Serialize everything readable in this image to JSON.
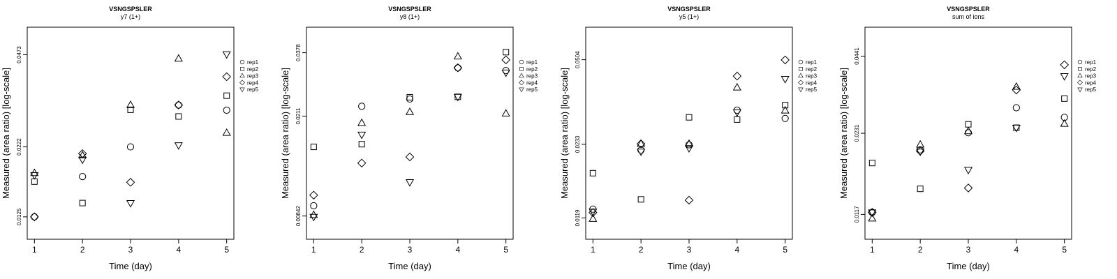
{
  "chart_data": [
    {
      "type": "scatter",
      "title": "VSNGSPSLER",
      "subtitle": "y7 (1+)",
      "xlabel": "Time (day)",
      "ylabel": "Measured (area ratio) [log-scale]",
      "x_ticks": [
        "1",
        "2",
        "3",
        "4",
        "5"
      ],
      "y_ticks": [
        {
          "value": 0.0125,
          "label": "0.0125"
        },
        {
          "value": 0.0222,
          "label": "0.0222"
        },
        {
          "value": 0.0473,
          "label": "0.0473"
        }
      ],
      "ylim": [
        0.0104,
        0.0593
      ],
      "log_y": true,
      "legend_position": "right",
      "series": [
        {
          "name": "rep1",
          "marker": "circle",
          "x": [
            1,
            2,
            3,
            4,
            5
          ],
          "y": [
            0.0125,
            0.0174,
            0.0222,
            0.0313,
            0.03
          ]
        },
        {
          "name": "rep2",
          "marker": "square",
          "x": [
            1,
            2,
            3,
            4,
            5
          ],
          "y": [
            0.0167,
            0.014,
            0.0301,
            0.0285,
            0.0338
          ]
        },
        {
          "name": "rep3",
          "marker": "triangle-up",
          "x": [
            1,
            2,
            3,
            4,
            5
          ],
          "y": [
            0.0179,
            0.0207,
            0.0313,
            0.0458,
            0.0249
          ]
        },
        {
          "name": "rep4",
          "marker": "diamond",
          "x": [
            1,
            2,
            3,
            4,
            5
          ],
          "y": [
            0.0125,
            0.021,
            0.0166,
            0.0313,
            0.0395
          ]
        },
        {
          "name": "rep5",
          "marker": "triangle-down",
          "x": [
            1,
            2,
            3,
            4,
            5
          ],
          "y": [
            0.0176,
            0.02,
            0.014,
            0.0225,
            0.0475
          ]
        }
      ]
    },
    {
      "type": "scatter",
      "title": "VSNGSPSLER",
      "subtitle": "y8 (1+)",
      "xlabel": "Time (day)",
      "ylabel": "Measured (area ratio) [log-scale]",
      "x_ticks": [
        "1",
        "2",
        "3",
        "4",
        "5"
      ],
      "y_ticks": [
        {
          "value": 0.00842,
          "label": "0.00842"
        },
        {
          "value": 0.0211,
          "label": "0.0211"
        },
        {
          "value": 0.0378,
          "label": "0.0378"
        }
      ],
      "ylim": [
        0.0068,
        0.0478
      ],
      "log_y": true,
      "legend_position": "right",
      "series": [
        {
          "name": "rep1",
          "marker": "circle",
          "x": [
            1,
            2,
            3,
            4,
            5
          ],
          "y": [
            0.00925,
            0.0231,
            0.0247,
            0.0329,
            0.0321
          ]
        },
        {
          "name": "rep2",
          "marker": "square",
          "x": [
            1,
            2,
            3,
            4,
            5
          ],
          "y": [
            0.0159,
            0.0163,
            0.0251,
            0.0252,
            0.038
          ]
        },
        {
          "name": "rep3",
          "marker": "triangle-up",
          "x": [
            1,
            2,
            3,
            4,
            5
          ],
          "y": [
            0.0085,
            0.0198,
            0.0219,
            0.0365,
            0.0216
          ]
        },
        {
          "name": "rep4",
          "marker": "diamond",
          "x": [
            1,
            2,
            3,
            4,
            5
          ],
          "y": [
            0.0102,
            0.0137,
            0.0145,
            0.0329,
            0.0354
          ]
        },
        {
          "name": "rep5",
          "marker": "triangle-down",
          "x": [
            1,
            2,
            3,
            4,
            5
          ],
          "y": [
            0.00836,
            0.0178,
            0.0115,
            0.0252,
            0.0315
          ]
        }
      ]
    },
    {
      "type": "scatter",
      "title": "VSNGSPSLER",
      "subtitle": "y5 (1+)",
      "xlabel": "Time (day)",
      "ylabel": "Measured (area ratio) [log-scale]",
      "x_ticks": [
        "1",
        "2",
        "3",
        "4",
        "5"
      ],
      "y_ticks": [
        {
          "value": 0.0119,
          "label": "0.0119"
        },
        {
          "value": 0.0233,
          "label": "0.0233"
        },
        {
          "value": 0.0504,
          "label": "0.0504"
        }
      ],
      "ylim": [
        0.0098,
        0.0678
      ],
      "log_y": true,
      "legend_position": "right",
      "series": [
        {
          "name": "rep1",
          "marker": "circle",
          "x": [
            1,
            2,
            3,
            4,
            5
          ],
          "y": [
            0.0129,
            0.0221,
            0.0232,
            0.0318,
            0.0295
          ]
        },
        {
          "name": "rep2",
          "marker": "square",
          "x": [
            1,
            2,
            3,
            4,
            5
          ],
          "y": [
            0.0179,
            0.0141,
            0.0298,
            0.0292,
            0.0333
          ]
        },
        {
          "name": "rep3",
          "marker": "triangle-up",
          "x": [
            1,
            2,
            3,
            4,
            5
          ],
          "y": [
            0.0118,
            0.0234,
            0.0234,
            0.0391,
            0.0317
          ]
        },
        {
          "name": "rep4",
          "marker": "diamond",
          "x": [
            1,
            2,
            3,
            4,
            5
          ],
          "y": [
            0.0125,
            0.0234,
            0.014,
            0.0434,
            0.0503
          ]
        },
        {
          "name": "rep5",
          "marker": "triangle-down",
          "x": [
            1,
            2,
            3,
            4,
            5
          ],
          "y": [
            0.0126,
            0.0218,
            0.0225,
            0.0312,
            0.0423
          ]
        }
      ]
    },
    {
      "type": "scatter",
      "title": "VSNGSPSLER",
      "subtitle": "sum of ions",
      "xlabel": "Time (day)",
      "ylabel": "Measured (area ratio) [log-scale]",
      "x_ticks": [
        "1",
        "2",
        "3",
        "4",
        "5"
      ],
      "y_ticks": [
        {
          "value": 0.0117,
          "label": "0.0117"
        },
        {
          "value": 0.0231,
          "label": "0.0231"
        },
        {
          "value": 0.0441,
          "label": "0.0441"
        }
      ],
      "ylim": [
        0.0095,
        0.0562
      ],
      "log_y": true,
      "legend_position": "right",
      "series": [
        {
          "name": "rep1",
          "marker": "circle",
          "x": [
            1,
            2,
            3,
            4,
            5
          ],
          "y": [
            0.0119,
            0.0201,
            0.0232,
            0.0286,
            0.0264
          ]
        },
        {
          "name": "rep2",
          "marker": "square",
          "x": [
            1,
            2,
            3,
            4,
            5
          ],
          "y": [
            0.018,
            0.0145,
            0.0249,
            0.0242,
            0.0309
          ]
        },
        {
          "name": "rep3",
          "marker": "triangle-up",
          "x": [
            1,
            2,
            3,
            4,
            5
          ],
          "y": [
            0.0113,
            0.021,
            0.0235,
            0.0341,
            0.025
          ]
        },
        {
          "name": "rep4",
          "marker": "diamond",
          "x": [
            1,
            2,
            3,
            4,
            5
          ],
          "y": [
            0.0119,
            0.0199,
            0.0146,
            0.0332,
            0.041
          ]
        },
        {
          "name": "rep5",
          "marker": "triangle-down",
          "x": [
            1,
            2,
            3,
            4,
            5
          ],
          "y": [
            0.0119,
            0.0198,
            0.017,
            0.0242,
            0.0373
          ]
        }
      ]
    }
  ]
}
